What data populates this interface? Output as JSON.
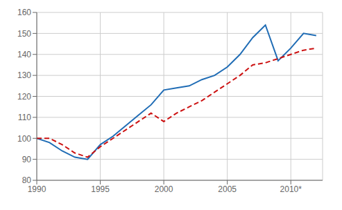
{
  "chart_data": {
    "type": "line",
    "x": [
      1990,
      1991,
      1992,
      1993,
      1994,
      1995,
      1996,
      1997,
      1998,
      1999,
      2000,
      2001,
      2002,
      2003,
      2004,
      2005,
      2006,
      2007,
      2008,
      2009,
      2010,
      2011,
      2012
    ],
    "series": [
      {
        "color": "#1f6cb5",
        "line_style": "solid",
        "values": [
          100,
          98,
          94,
          91,
          90,
          97,
          101,
          106,
          111,
          116,
          123,
          124,
          125,
          128,
          130,
          134,
          140,
          148,
          154,
          137,
          143,
          150,
          149
        ]
      },
      {
        "color": "#cc1111",
        "line_style": "dashed",
        "values": [
          100,
          100,
          97,
          93,
          91,
          96,
          100,
          104,
          108,
          112,
          108,
          112,
          115,
          118,
          122,
          126,
          130,
          135,
          136,
          138,
          140,
          142,
          143
        ]
      }
    ],
    "xlim": [
      1990,
      2012.5
    ],
    "ylim": [
      80,
      160
    ],
    "xticks": [
      1990,
      1995,
      2000,
      2005,
      {
        "value": 2010,
        "label": "2010*"
      }
    ],
    "yticks": [
      80,
      90,
      100,
      110,
      120,
      130,
      140,
      150,
      160
    ],
    "grid": true
  }
}
